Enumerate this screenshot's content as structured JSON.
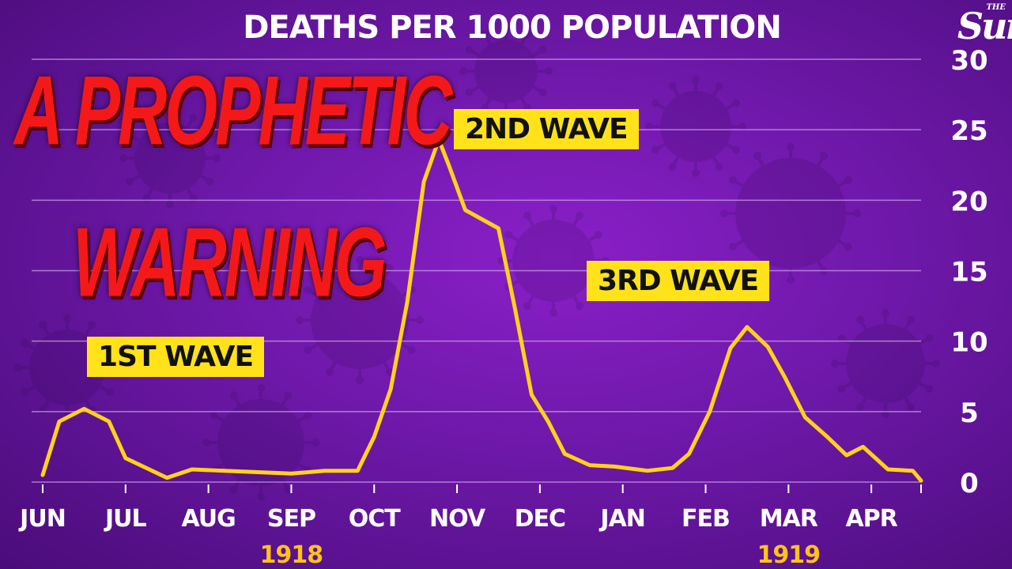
{
  "chart_data": {
    "type": "line",
    "title": "DEATHS PER 1000 POPULATION",
    "x": [
      0,
      0.2,
      0.5,
      0.8,
      1.0,
      1.5,
      1.8,
      2.2,
      3.0,
      3.4,
      3.8,
      4.0,
      4.2,
      4.4,
      4.6,
      4.78,
      4.9,
      5.1,
      5.5,
      5.7,
      5.9,
      6.1,
      6.3,
      6.6,
      6.9,
      7.3,
      7.6,
      7.8,
      8.05,
      8.3,
      8.5,
      8.75,
      8.95,
      9.2,
      9.45,
      9.7,
      9.9,
      10.2,
      10.5,
      10.6
    ],
    "y": [
      0.5,
      4.3,
      5.2,
      4.3,
      1.7,
      0.3,
      0.9,
      0.8,
      0.6,
      0.8,
      0.8,
      3.2,
      6.6,
      12.8,
      21.3,
      24.3,
      22.5,
      19.3,
      18.0,
      12.3,
      6.2,
      4.3,
      2.0,
      1.2,
      1.1,
      0.8,
      1.0,
      2.0,
      5.0,
      9.5,
      11.0,
      9.6,
      7.5,
      4.6,
      3.3,
      1.9,
      2.5,
      0.9,
      0.8,
      0.1
    ],
    "xticks": [
      0,
      1,
      2,
      3,
      4,
      5,
      6,
      7,
      8,
      9,
      10
    ],
    "xtick_labels": [
      "JUN",
      "JUL",
      "AUG",
      "SEP",
      "OCT",
      "NOV",
      "DEC",
      "JAN",
      "FEB",
      "MAR",
      "APR"
    ],
    "year_labels": [
      {
        "at": 3,
        "label": "1918"
      },
      {
        "at": 9,
        "label": "1919"
      }
    ],
    "yticks": [
      0,
      5,
      10,
      15,
      20,
      25,
      30
    ],
    "ylim": [
      0,
      30
    ],
    "xlim": [
      0,
      10.6
    ],
    "grid": true,
    "line_color": "#ffd21a",
    "annotations": [
      {
        "label": "1ST WAVE"
      },
      {
        "label": "2ND WAVE"
      },
      {
        "label": "3RD WAVE"
      }
    ]
  },
  "headline": {
    "line1": "A PROPHETIC",
    "line2": "WARNING"
  },
  "logo": {
    "small": "THE",
    "main": "Sun"
  },
  "colors": {
    "background": "#6d18a8",
    "headline": "#f41919",
    "label_box": "#ffe21a",
    "grid": "#c9a0e6",
    "year": "#ffc21a"
  }
}
